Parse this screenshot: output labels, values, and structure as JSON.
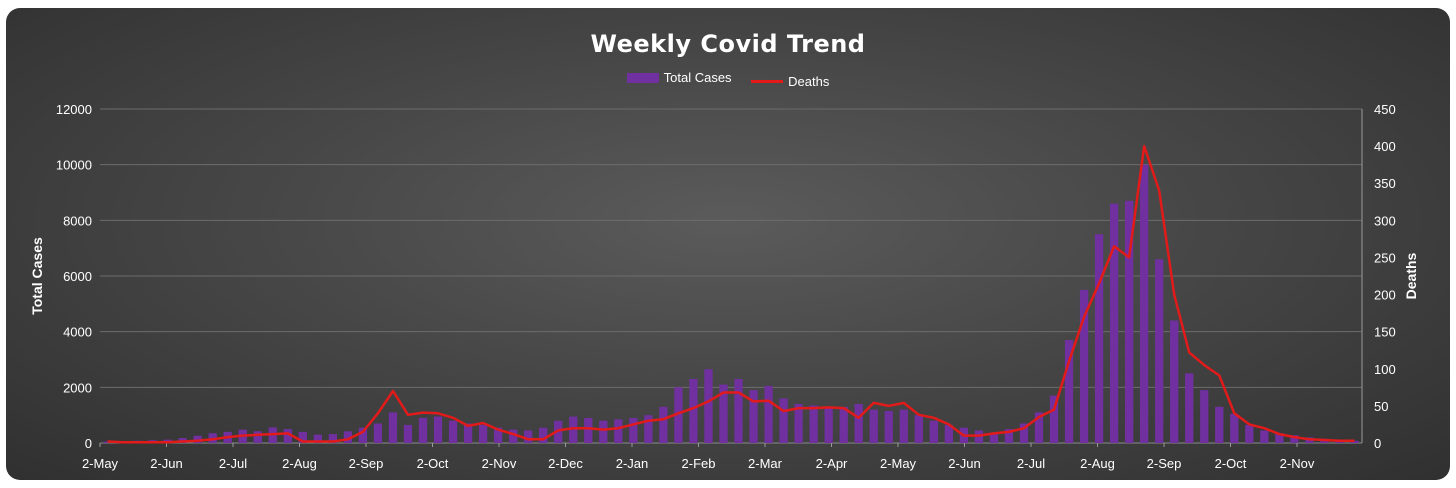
{
  "chart_data": {
    "type": "bar",
    "title": "Weekly Covid Trend",
    "colors": {
      "cases": "#7030a0",
      "deaths": "#e31a1a"
    },
    "legend": {
      "placement": "top-center",
      "entries": [
        "Total Cases",
        "Deaths"
      ]
    },
    "ylabel": "Total Cases",
    "y2label": "Deaths",
    "ylim": [
      0,
      12000
    ],
    "y2lim": [
      0,
      450
    ],
    "yticks": [
      0,
      2000,
      4000,
      6000,
      8000,
      10000,
      12000
    ],
    "y2ticks": [
      0,
      50,
      100,
      150,
      200,
      250,
      300,
      350,
      400,
      450
    ],
    "xtick_labels": [
      "2-May",
      "2-Jun",
      "2-Jul",
      "2-Aug",
      "2-Sep",
      "2-Oct",
      "2-Nov",
      "2-Dec",
      "2-Jan",
      "2-Feb",
      "2-Mar",
      "2-Apr",
      "2-May",
      "2-Jun",
      "2-Jul",
      "2-Aug",
      "2-Sep",
      "2-Oct",
      "2-Nov"
    ],
    "grid": true,
    "series": [
      {
        "name": "Total Cases",
        "type": "bar",
        "axis": "left",
        "values": [
          50,
          60,
          80,
          100,
          120,
          180,
          260,
          350,
          400,
          480,
          420,
          560,
          500,
          400,
          300,
          320,
          420,
          550,
          700,
          1100,
          650,
          900,
          950,
          800,
          700,
          650,
          550,
          480,
          450,
          550,
          800,
          950,
          900,
          800,
          850,
          900,
          1000,
          1300,
          2000,
          2300,
          2650,
          2100,
          2300,
          1900,
          2050,
          1600,
          1400,
          1350,
          1300,
          1300,
          1400,
          1200,
          1150,
          1200,
          1000,
          800,
          650,
          550,
          450,
          350,
          500,
          700,
          1100,
          1700,
          3700,
          5500,
          7500,
          8600,
          8700,
          10000,
          6600,
          4400,
          2500,
          1900,
          1300,
          1050,
          650,
          450,
          350,
          280,
          200,
          150,
          120,
          80
        ]
      },
      {
        "name": "Deaths",
        "type": "line",
        "axis": "right",
        "values": [
          2,
          1,
          1,
          1,
          1,
          2,
          3,
          5,
          8,
          10,
          11,
          12,
          13,
          2,
          2,
          2,
          5,
          15,
          40,
          70,
          38,
          41,
          40,
          34,
          23,
          27,
          18,
          12,
          5,
          5,
          17,
          20,
          20,
          18,
          20,
          25,
          30,
          32,
          40,
          47,
          56,
          68,
          68,
          56,
          57,
          43,
          47,
          47,
          48,
          47,
          34,
          54,
          50,
          54,
          38,
          34,
          25,
          10,
          10,
          13,
          15,
          20,
          35,
          45,
          110,
          170,
          215,
          265,
          250,
          400,
          340,
          200,
          122,
          105,
          91,
          40,
          25,
          20,
          12,
          8,
          5,
          4,
          3,
          3
        ]
      }
    ]
  }
}
